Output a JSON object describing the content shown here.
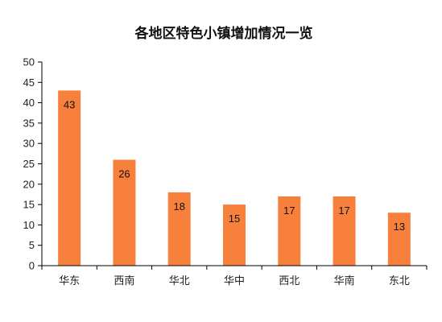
{
  "chart_data": {
    "type": "bar",
    "title": "各地区特色小镇增加情况一览",
    "xlabel": "",
    "ylabel": "",
    "categories": [
      "华东",
      "西南",
      "华北",
      "华中",
      "西北",
      "华南",
      "东北"
    ],
    "values": [
      43,
      26,
      18,
      15,
      17,
      17,
      13
    ],
    "ylim": [
      0,
      50
    ],
    "yticks": [
      0,
      5,
      10,
      15,
      20,
      25,
      30,
      35,
      40,
      45,
      50
    ],
    "grid": false,
    "legend": "none",
    "data_labels": true,
    "colors": {
      "bar": "#F7803C",
      "axis": "#000000"
    }
  }
}
